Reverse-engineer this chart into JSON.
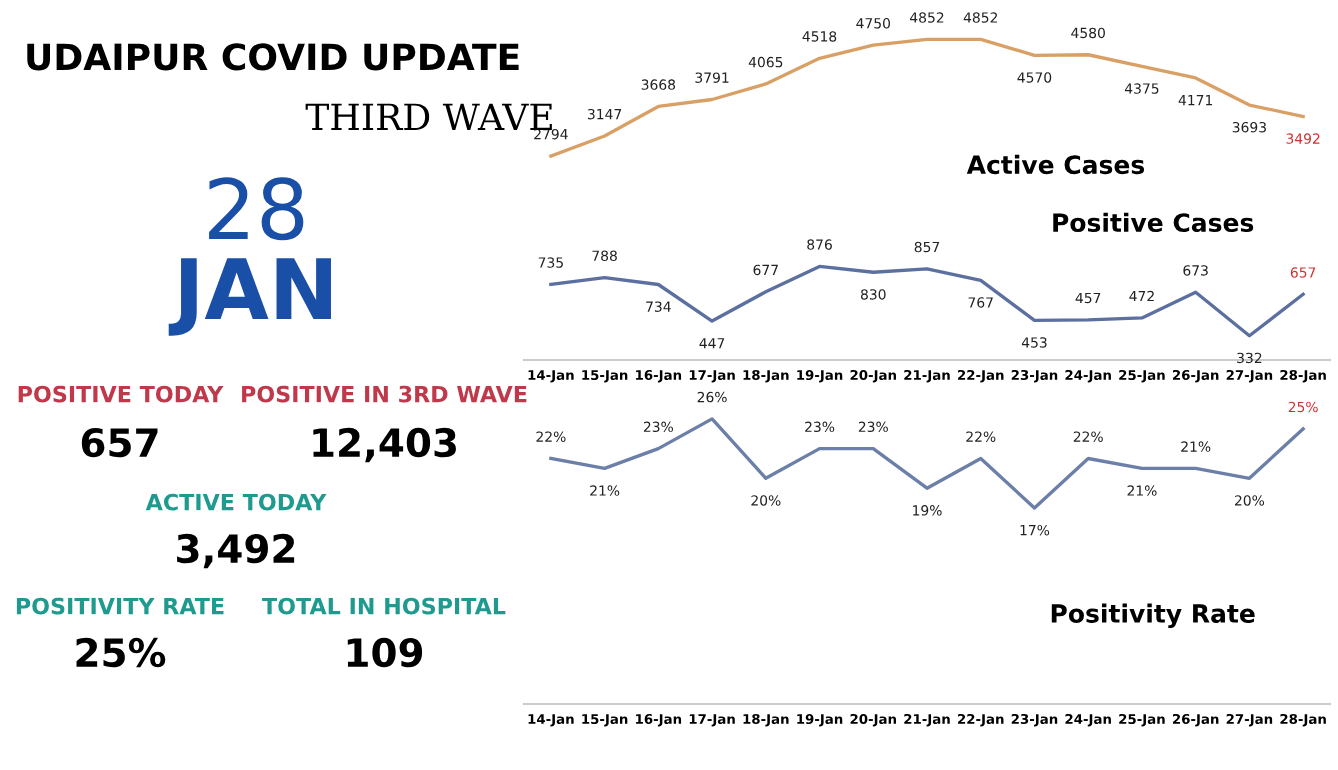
{
  "chart_data": [
    {
      "type": "other",
      "title": "UDAIPUR COVID UPDATE",
      "subtitle": "THIRD WAVE",
      "annotations": [
        "28",
        "JAN",
        "POSITIVE TODAY",
        "657",
        "POSITIVE IN 3RD WAVE",
        "12,403",
        "ACTIVE TODAY",
        "3,492",
        "POSITIVITY RATE",
        "25%",
        "TOTAL IN HOSPITAL",
        "109"
      ]
    },
    {
      "type": "line",
      "title": "Active Cases",
      "categories": [
        null,
        null,
        null,
        null,
        null,
        null,
        null,
        null,
        null,
        null,
        null,
        null,
        null,
        null,
        null
      ],
      "series": [
        {
          "color": "#d9a066",
          "values": [
            2794,
            3147,
            3668,
            3791,
            4065,
            4518,
            4750,
            4852,
            4852,
            4570,
            4580,
            4375,
            4171,
            3693,
            3492
          ]
        }
      ],
      "data_labels": true,
      "tick_labels": false,
      "legend": false,
      "grid": false,
      "marker": "none"
    },
    {
      "type": "line",
      "title": "Positive Cases",
      "categories": [
        "14-Jan",
        "15-Jan",
        "16-Jan",
        "17-Jan",
        "18-Jan",
        "19-Jan",
        "20-Jan",
        "21-Jan",
        "22-Jan",
        "23-Jan",
        "24-Jan",
        "25-Jan",
        "26-Jan",
        "27-Jan",
        "28-Jan"
      ],
      "series": [
        {
          "color": "#5b6fa0",
          "values": [
            735,
            788,
            734,
            447,
            677,
            876,
            830,
            857,
            767,
            453,
            457,
            472,
            673,
            332,
            657
          ]
        }
      ],
      "data_labels": true,
      "tick_labels": "x",
      "legend": false,
      "grid": false,
      "marker": "none"
    },
    {
      "type": "line",
      "title": "Positivity Rate",
      "categories": [
        "14-Jan",
        "15-Jan",
        "16-Jan",
        "17-Jan",
        "18-Jan",
        "19-Jan",
        "20-Jan",
        "21-Jan",
        "22-Jan",
        "23-Jan",
        "24-Jan",
        "25-Jan",
        "26-Jan",
        "27-Jan",
        "28-Jan"
      ],
      "series": [
        {
          "color": "#6b7fa8",
          "values": [
            22,
            21,
            23,
            26,
            20,
            23,
            23,
            19,
            22,
            17,
            22,
            21,
            21,
            20,
            25
          ],
          "value_labels": [
            "22%",
            "21%",
            "23%",
            "26%",
            "20%",
            "23%",
            "23%",
            "19%",
            "22%",
            "17%",
            "22%",
            "21%",
            "21%",
            "20%",
            "25%"
          ]
        }
      ],
      "tick_labels": "x",
      "legend": false,
      "grid": false,
      "marker": "none"
    }
  ]
}
